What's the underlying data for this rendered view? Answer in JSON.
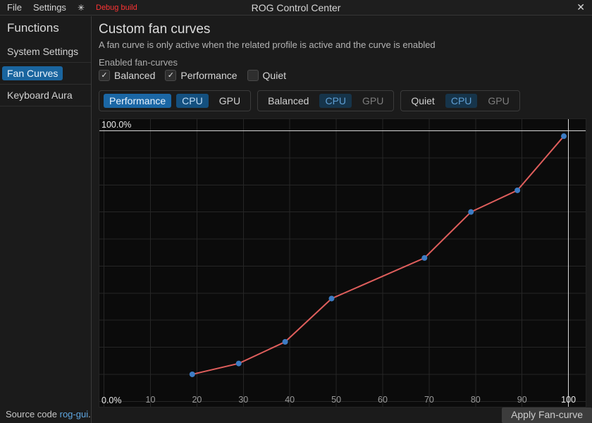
{
  "titlebar": {
    "menus": [
      {
        "label": "File"
      },
      {
        "label": "Settings"
      }
    ],
    "theme_icon": "✳",
    "debug_label": "Debug build",
    "title": "ROG Control Center",
    "close_icon": "✕"
  },
  "sidebar": {
    "heading": "Functions",
    "items": [
      {
        "label": "System Settings",
        "selected": false
      },
      {
        "label": "Fan Curves",
        "selected": true
      },
      {
        "label": "Keyboard Aura",
        "selected": false
      }
    ],
    "footer": {
      "prefix": "Source code ",
      "link": "rog-gui",
      "suffix": "."
    }
  },
  "main": {
    "title": "Custom fan curves",
    "subtitle": "A fan curve is only active when the related profile is active and the curve is enabled",
    "enabled_label": "Enabled fan-curves",
    "checkboxes": [
      {
        "label": "Balanced",
        "checked": true
      },
      {
        "label": "Performance",
        "checked": true
      },
      {
        "label": "Quiet",
        "checked": false
      }
    ],
    "profile_groups": [
      {
        "profile": "Performance",
        "cpu": "CPU",
        "gpu": "GPU",
        "active": true,
        "selected_fan": "CPU"
      },
      {
        "profile": "Balanced",
        "cpu": "CPU",
        "gpu": "GPU",
        "active": false,
        "selected_fan": "CPU"
      },
      {
        "profile": "Quiet",
        "cpu": "CPU",
        "gpu": "GPU",
        "active": false,
        "selected_fan": "CPU"
      }
    ],
    "apply_button": "Apply Fan-curve"
  },
  "icons": {
    "check": "✓"
  },
  "colors": {
    "accent_blue": "#1a659f",
    "debug_red": "#ff3434",
    "link_blue": "#5ea6e0"
  },
  "chart_data": {
    "type": "line",
    "x": [
      19,
      29,
      39,
      49,
      69,
      79,
      89,
      99
    ],
    "y": [
      10,
      14,
      22,
      38,
      53,
      70,
      78,
      98
    ],
    "xlim": [
      -1,
      103.7
    ],
    "ylim": [
      -2,
      104.3
    ],
    "x_ticks": [
      10,
      20,
      30,
      40,
      50,
      60,
      70,
      80,
      90,
      100
    ],
    "grid_x": [
      0,
      10,
      20,
      30,
      40,
      50,
      60,
      70,
      80,
      90,
      100
    ],
    "grid_y": [
      0,
      10,
      20,
      30,
      40,
      50,
      60,
      70,
      80,
      90,
      100
    ],
    "y_label_top": "100.0%",
    "y_label_bottom": "0.0%",
    "highlight_x": 100,
    "highlight_y": 100,
    "line_color": "#df5e5c",
    "point_color": "#3d7cc4",
    "grid_color": "#262626",
    "highlight_color": "#d8d8d8",
    "tick_color": "#9a9a9a",
    "tick_highlight_color": "#e8e8e8",
    "background": "#0b0b0b",
    "grid": true,
    "legend": false
  }
}
